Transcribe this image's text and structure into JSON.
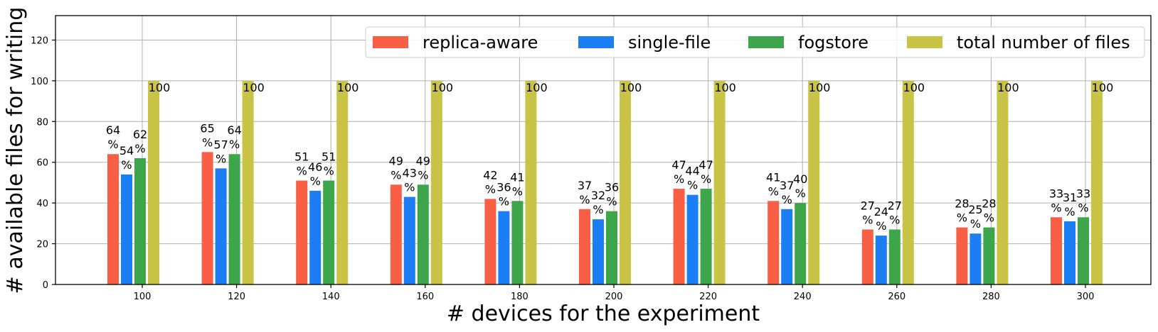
{
  "chart_data": {
    "type": "bar",
    "xlabel": "# devices for the experiment",
    "ylabel": "# available files for writing",
    "categories": [
      "100",
      "120",
      "140",
      "160",
      "180",
      "200",
      "220",
      "240",
      "260",
      "280",
      "300"
    ],
    "ylim": [
      0,
      132
    ],
    "yticks": [
      0,
      20,
      40,
      60,
      80,
      100,
      120
    ],
    "grid": true,
    "legend_position": "top-right",
    "series": [
      {
        "name": "replica-aware",
        "color": "#f95f45",
        "values": [
          64,
          65,
          51,
          49,
          42,
          37,
          47,
          41,
          27,
          28,
          33
        ],
        "labels": [
          "64\n%",
          "65\n%",
          "51\n%",
          "49\n%",
          "42\n%",
          "37\n%",
          "47\n%",
          "41\n%",
          "27\n%",
          "28\n%",
          "33\n%"
        ]
      },
      {
        "name": "single-file",
        "color": "#1c7ef5",
        "values": [
          54,
          57,
          46,
          43,
          36,
          32,
          44,
          37,
          24,
          25,
          31
        ],
        "labels": [
          "54\n%",
          "57\n%",
          "46\n%",
          "43\n%",
          "36\n%",
          "32\n%",
          "44\n%",
          "37\n%",
          "24\n%",
          "25\n%",
          "31\n%"
        ]
      },
      {
        "name": "fogstore",
        "color": "#3da64b",
        "values": [
          62,
          64,
          51,
          49,
          41,
          36,
          47,
          40,
          27,
          28,
          33
        ],
        "labels": [
          "62\n%",
          "64\n%",
          "51\n%",
          "49\n%",
          "41\n%",
          "36\n%",
          "47\n%",
          "40\n%",
          "27\n%",
          "28\n%",
          "33\n%"
        ]
      },
      {
        "name": "total number of files",
        "color": "#c9c446",
        "values": [
          100,
          100,
          100,
          100,
          100,
          100,
          100,
          100,
          100,
          100,
          100
        ],
        "labels": [
          "100",
          "100",
          "100",
          "100",
          "100",
          "100",
          "100",
          "100",
          "100",
          "100",
          "100"
        ]
      }
    ]
  }
}
